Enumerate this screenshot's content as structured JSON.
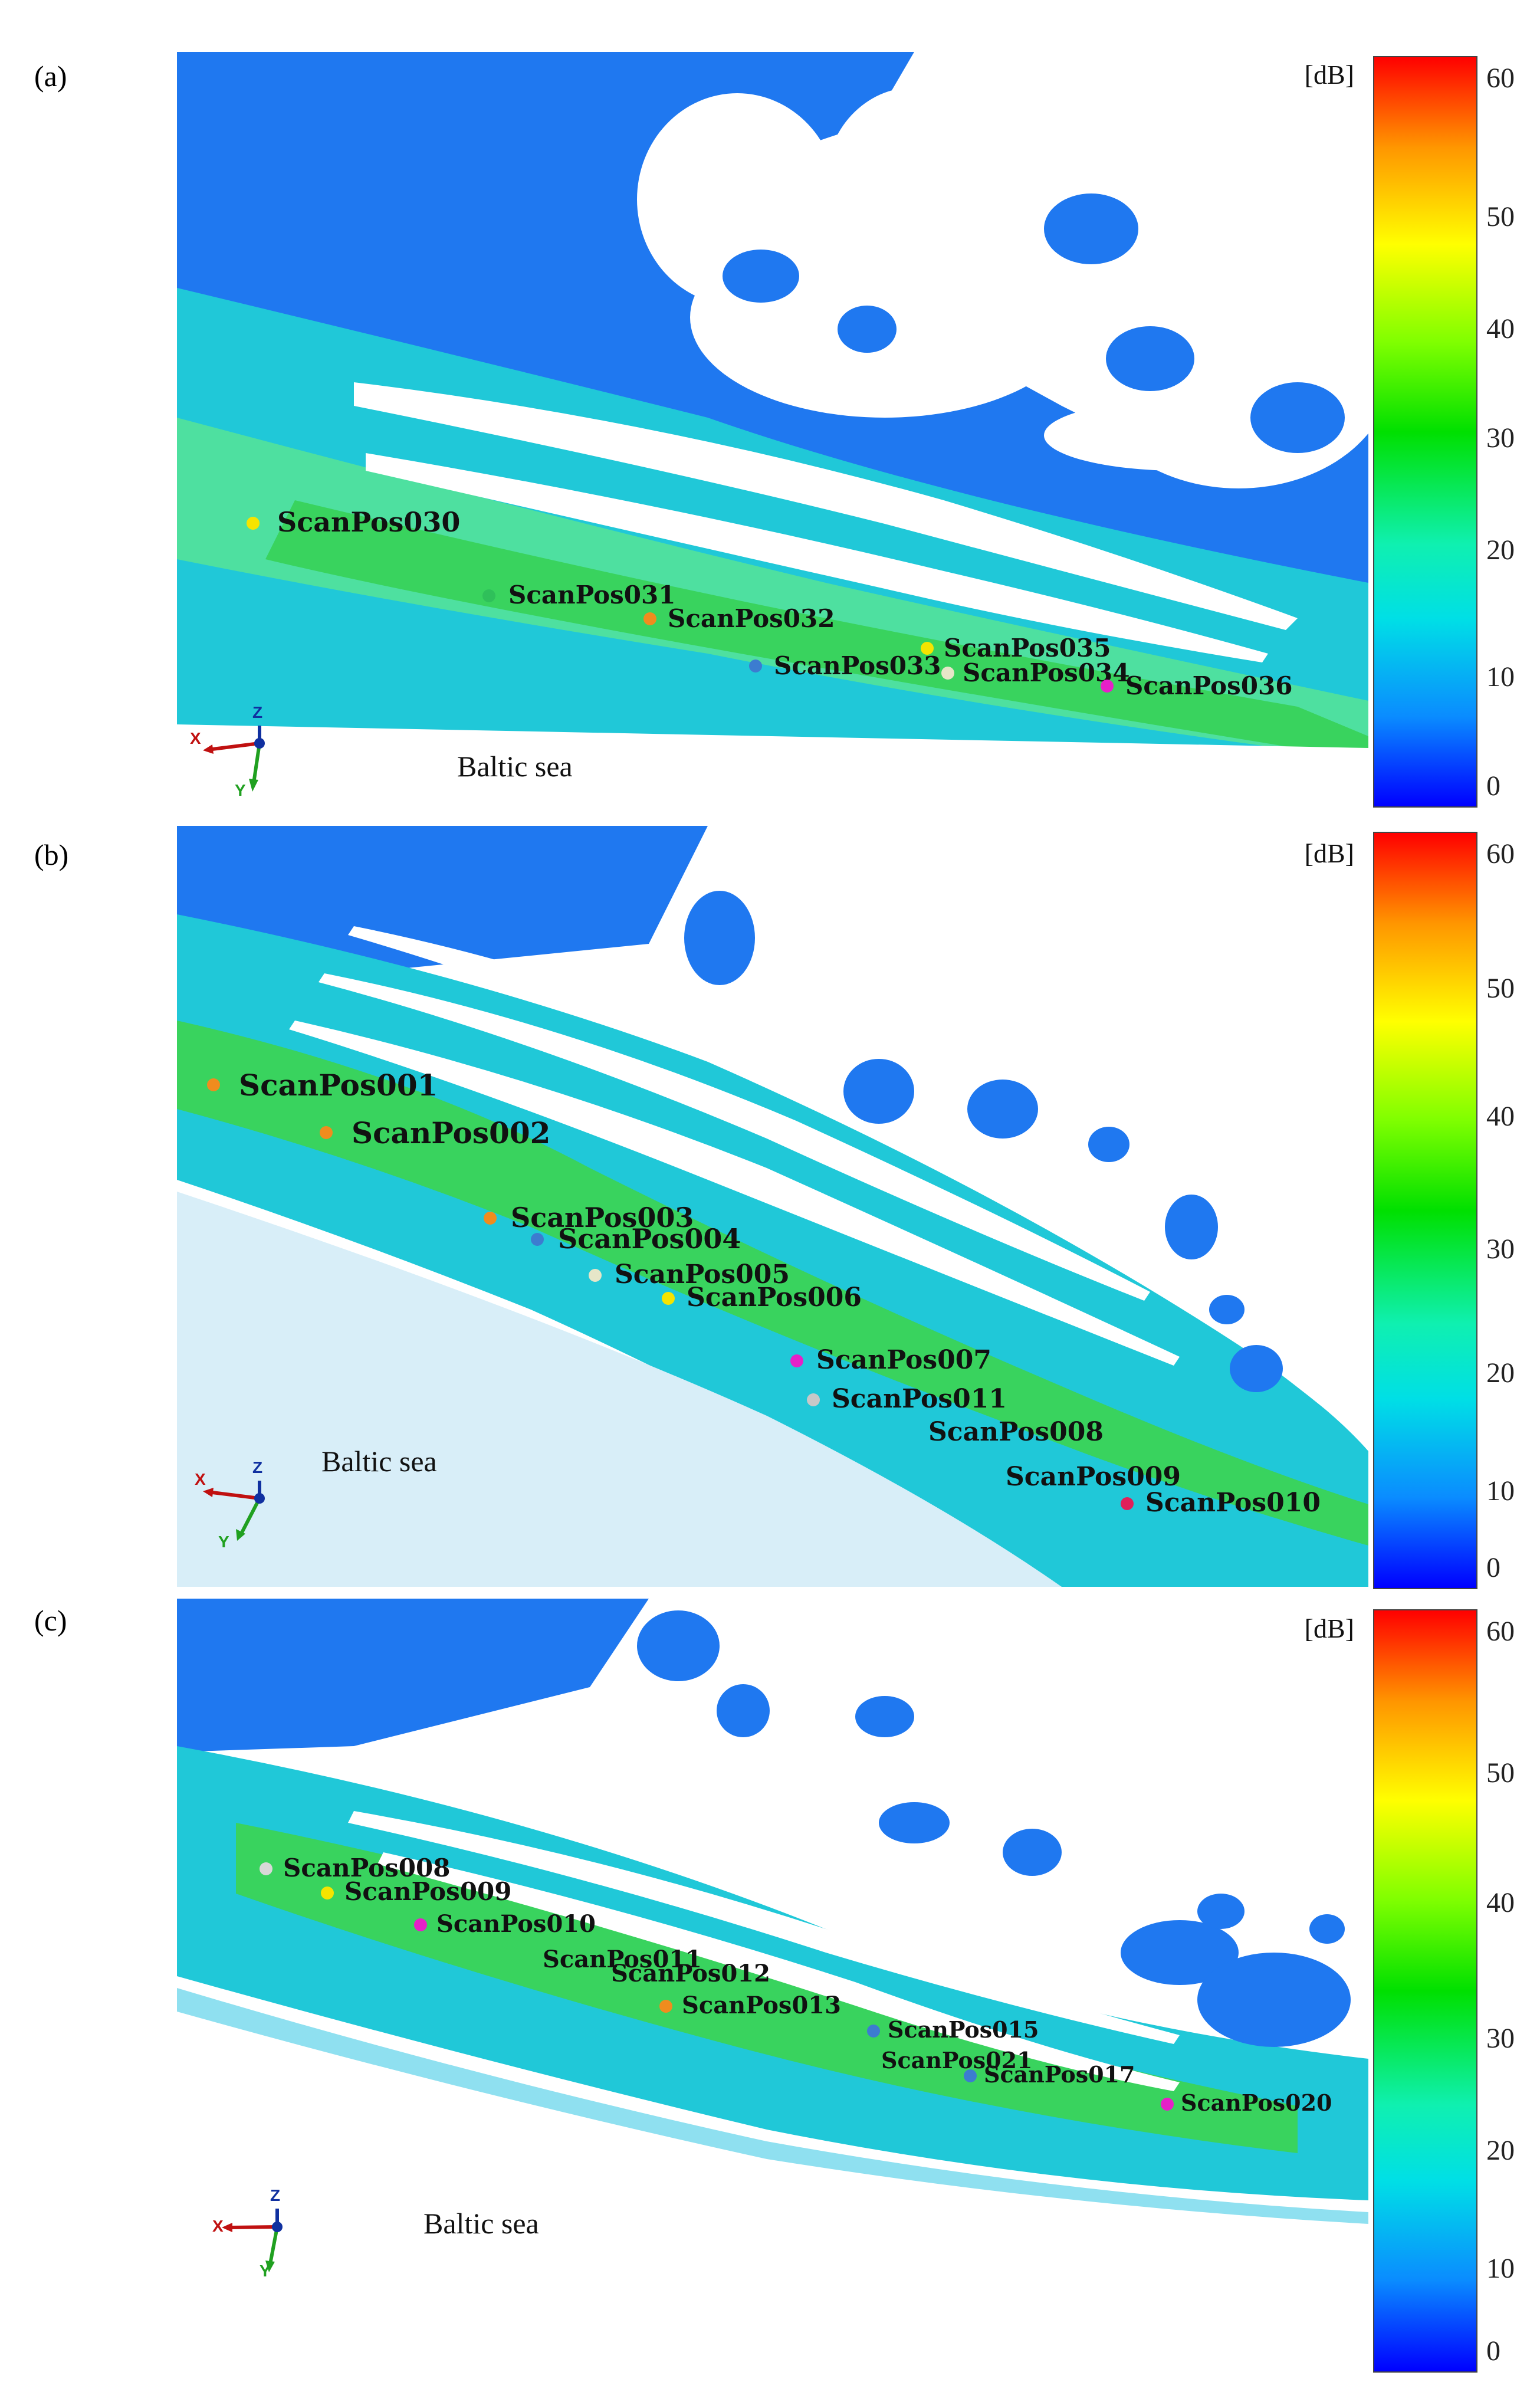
{
  "panels": [
    {
      "label": "(a)",
      "unit": "[dB]",
      "ticks": [
        "60",
        "50",
        "40",
        "30",
        "20",
        "10",
        "0"
      ],
      "sea_label": "Baltic sea",
      "axes": {
        "x": "X",
        "y": "Y",
        "z": "Z"
      },
      "points": [
        {
          "name": "ScanPos030",
          "color": "#f5e400"
        },
        {
          "name": "ScanPos031",
          "color": "#2fc05a"
        },
        {
          "name": "ScanPos032",
          "color": "#f08c1e"
        },
        {
          "name": "ScanPos033",
          "color": "#3c7cd0"
        },
        {
          "name": "ScanPos035",
          "color": "#f5e400"
        },
        {
          "name": "ScanPos034",
          "color": "#e6e6c8"
        },
        {
          "name": "ScanPos036",
          "color": "#e620c8"
        }
      ]
    },
    {
      "label": "(b)",
      "unit": "[dB]",
      "ticks": [
        "60",
        "50",
        "40",
        "30",
        "20",
        "10",
        "0"
      ],
      "sea_label": "Baltic sea",
      "axes": {
        "x": "X",
        "y": "Y",
        "z": "Z"
      },
      "points": [
        {
          "name": "ScanPos001",
          "color": "#f08c1e"
        },
        {
          "name": "ScanPos002",
          "color": "#f08c1e"
        },
        {
          "name": "ScanPos003",
          "color": "#f08c1e"
        },
        {
          "name": "ScanPos004",
          "color": "#3c7cd0"
        },
        {
          "name": "ScanPos005",
          "color": "#e6e6c8"
        },
        {
          "name": "ScanPos006",
          "color": "#f5e400"
        },
        {
          "name": "ScanPos007",
          "color": "#e620c8"
        },
        {
          "name": "ScanPos011",
          "color": "#c8c8c8"
        },
        {
          "name": "ScanPos008",
          "color": "#2fc05a"
        },
        {
          "name": "ScanPos009",
          "color": "#2fc05a"
        },
        {
          "name": "ScanPos010",
          "color": "#e0205a"
        }
      ]
    },
    {
      "label": "(c)",
      "unit": "[dB]",
      "ticks": [
        "60",
        "50",
        "40",
        "30",
        "20",
        "10",
        "0"
      ],
      "sea_label": "Baltic sea",
      "axes": {
        "x": "X",
        "y": "Y",
        "z": "Z"
      },
      "points": [
        {
          "name": "ScanPos008",
          "color": "#d8d8d8"
        },
        {
          "name": "ScanPos009",
          "color": "#f5e400"
        },
        {
          "name": "ScanPos010",
          "color": "#e620c8"
        },
        {
          "name": "ScanPos011",
          "color": "#2fc05a"
        },
        {
          "name": "ScanPos012",
          "color": "#2fc05a"
        },
        {
          "name": "ScanPos013",
          "color": "#f08c1e"
        },
        {
          "name": "ScanPos015",
          "color": "#3c7cd0"
        },
        {
          "name": "ScanPos021",
          "color": "#00d8e0"
        },
        {
          "name": "ScanPos017",
          "color": "#3c7cd0"
        },
        {
          "name": "ScanPos020",
          "color": "#e620c8"
        }
      ]
    }
  ]
}
